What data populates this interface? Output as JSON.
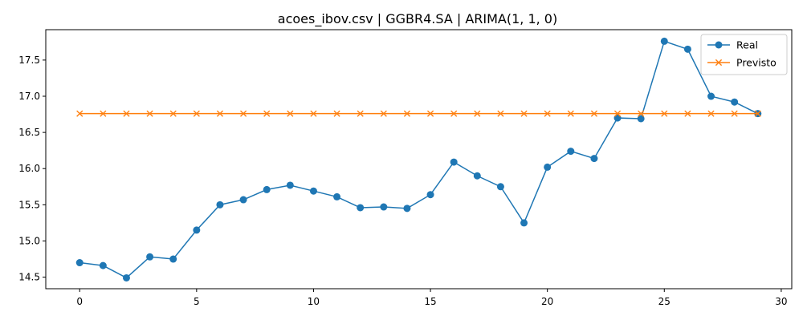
{
  "figure": {
    "title": "acoes_ibov.csv | GGBR4.SA | ARIMA(1, 1, 0)"
  },
  "colors": {
    "real": "#1f77b4",
    "previsto": "#ff7f0e",
    "axes": "#000000",
    "legend_border": "#cccccc"
  },
  "chart_data": {
    "type": "line",
    "title": "acoes_ibov.csv | GGBR4.SA | ARIMA(1, 1, 0)",
    "xlabel": "",
    "ylabel": "",
    "x": [
      0,
      1,
      2,
      3,
      4,
      5,
      6,
      7,
      8,
      9,
      10,
      11,
      12,
      13,
      14,
      15,
      16,
      17,
      18,
      19,
      20,
      21,
      22,
      23,
      24,
      25,
      26,
      27,
      28,
      29
    ],
    "xlim": [
      -1.45,
      30.45
    ],
    "ylim": [
      14.34,
      17.92
    ],
    "xticks": [
      0,
      5,
      10,
      15,
      20,
      25,
      30
    ],
    "yticks": [
      14.5,
      15.0,
      15.5,
      16.0,
      16.5,
      17.0,
      17.5
    ],
    "ytick_labels": [
      "14.5",
      "15.0",
      "15.5",
      "16.0",
      "16.5",
      "17.0",
      "17.5"
    ],
    "grid": false,
    "legend_position": "top-right",
    "series": [
      {
        "name": "Real",
        "marker": "circle",
        "values": [
          14.7,
          14.66,
          14.49,
          14.78,
          14.75,
          15.15,
          15.5,
          15.57,
          15.71,
          15.77,
          15.69,
          15.61,
          15.46,
          15.47,
          15.45,
          15.64,
          16.09,
          15.9,
          15.75,
          15.25,
          16.02,
          16.24,
          16.14,
          16.7,
          16.69,
          17.76,
          17.65,
          17.0,
          16.92,
          16.76
        ]
      },
      {
        "name": "Previsto",
        "marker": "x",
        "values": [
          16.76,
          16.76,
          16.76,
          16.76,
          16.76,
          16.76,
          16.76,
          16.76,
          16.76,
          16.76,
          16.76,
          16.76,
          16.76,
          16.76,
          16.76,
          16.76,
          16.76,
          16.76,
          16.76,
          16.76,
          16.76,
          16.76,
          16.76,
          16.76,
          16.76,
          16.76,
          16.76,
          16.76,
          16.76,
          16.76
        ]
      }
    ]
  }
}
